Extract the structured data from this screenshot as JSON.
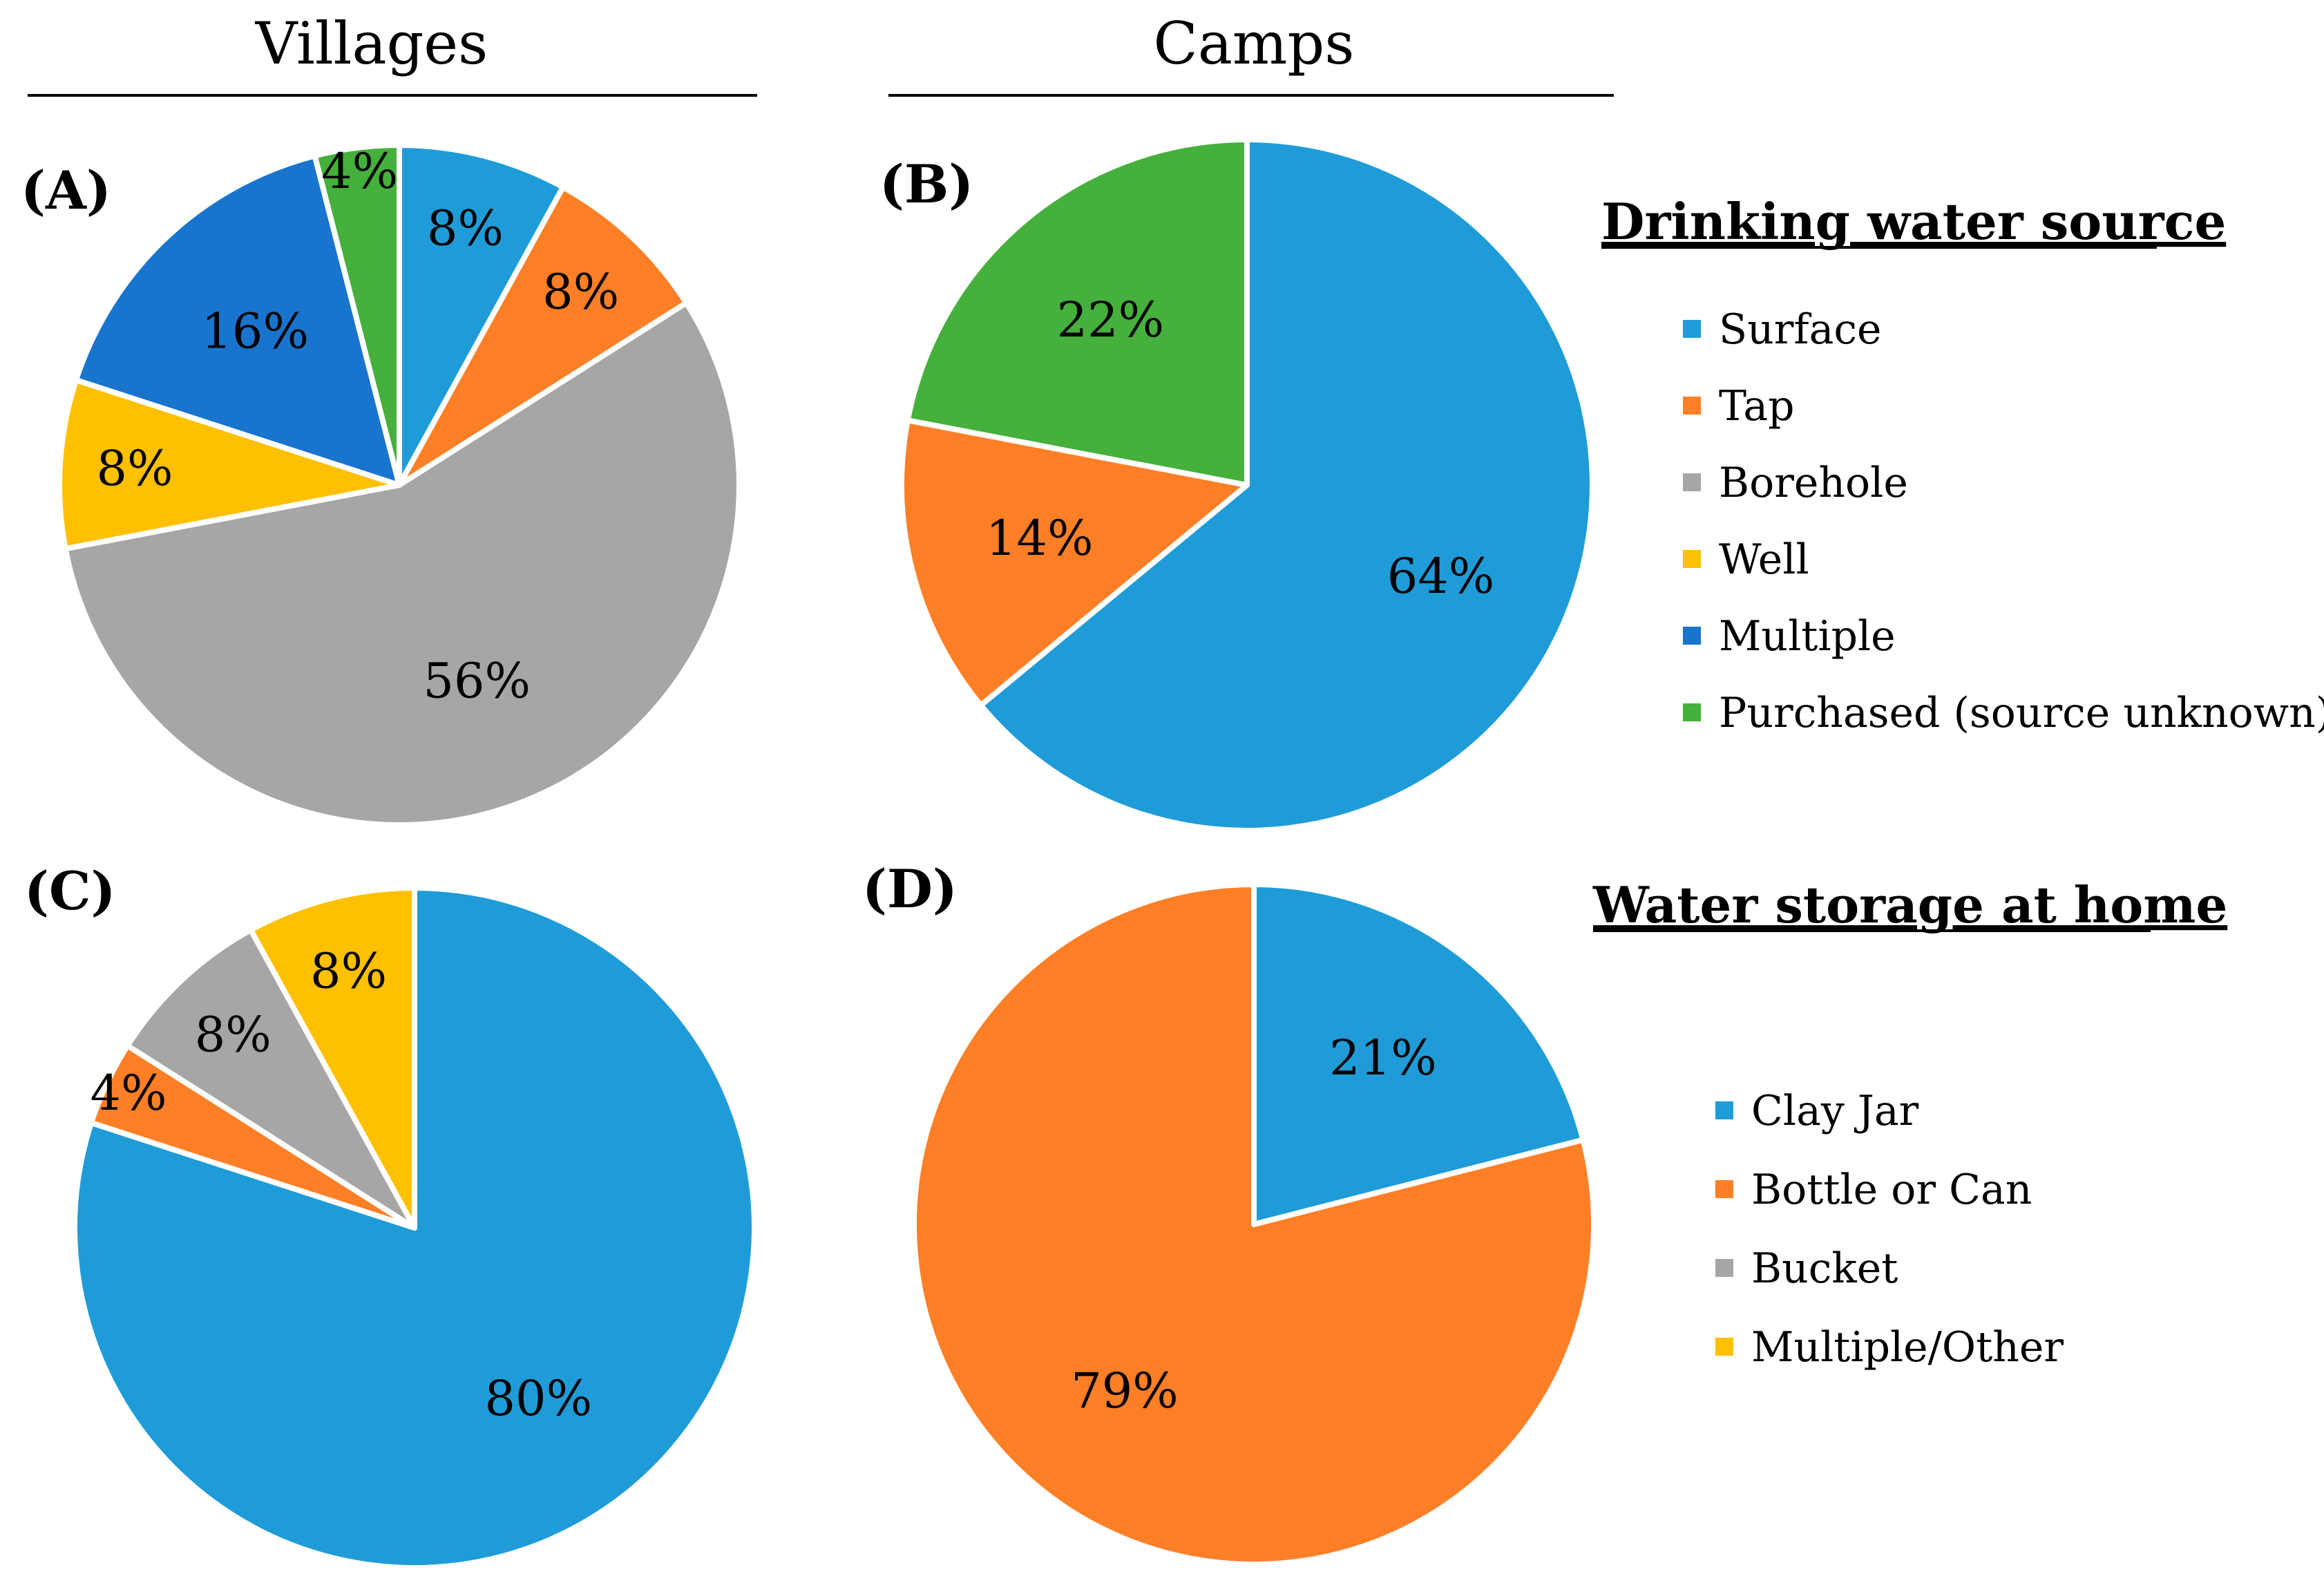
{
  "columns": {
    "left": "Villages",
    "right": "Camps"
  },
  "legends": {
    "source": {
      "title": "Drinking water source",
      "items": [
        {
          "label": "Surface",
          "color": "#1F9CD8"
        },
        {
          "label": "Tap",
          "color": "#FF7F27"
        },
        {
          "label": "Borehole",
          "color": "#A6A6A6"
        },
        {
          "label": "Well",
          "color": "#FFC000"
        },
        {
          "label": "Multiple",
          "color": "#1874CD"
        },
        {
          "label": "Purchased (source unknown)",
          "color": "#45B03C"
        }
      ]
    },
    "storage": {
      "title": "Water storage at home",
      "items": [
        {
          "label": "Clay Jar",
          "color": "#1F9CD8"
        },
        {
          "label": "Bottle or Can",
          "color": "#FF7F27"
        },
        {
          "label": "Bucket",
          "color": "#A6A6A6"
        },
        {
          "label": "Multiple/Other",
          "color": "#FFC000"
        }
      ]
    }
  },
  "chart_data": [
    {
      "type": "pie",
      "panel": "(A)",
      "column": "Villages",
      "legend": "source",
      "categories": [
        "Surface",
        "Tap",
        "Borehole",
        "Well",
        "Multiple",
        "Purchased (source unknown)"
      ],
      "values": [
        8,
        8,
        56,
        8,
        16,
        4
      ],
      "labels": [
        "8%",
        "8%",
        "56%",
        "8%",
        "16%",
        "4%"
      ],
      "colors": [
        "#1F9CD8",
        "#FF7F27",
        "#A6A6A6",
        "#FFC000",
        "#1874CD",
        "#45B03C"
      ]
    },
    {
      "type": "pie",
      "panel": "(B)",
      "column": "Camps",
      "legend": "source",
      "categories": [
        "Surface",
        "Tap",
        "Purchased (source unknown)"
      ],
      "values": [
        64,
        14,
        22
      ],
      "labels": [
        "64%",
        "14%",
        "22%"
      ],
      "colors": [
        "#1F9CD8",
        "#FF7F27",
        "#45B03C"
      ]
    },
    {
      "type": "pie",
      "panel": "(C)",
      "column": "Villages",
      "legend": "storage",
      "categories": [
        "Clay Jar",
        "Bottle or Can",
        "Bucket",
        "Multiple/Other"
      ],
      "values": [
        80,
        4,
        8,
        8
      ],
      "labels": [
        "80%",
        "4%",
        "8%",
        "8%"
      ],
      "colors": [
        "#1F9CD8",
        "#FF7F27",
        "#A6A6A6",
        "#FFC000"
      ]
    },
    {
      "type": "pie",
      "panel": "(D)",
      "column": "Camps",
      "legend": "storage",
      "categories": [
        "Clay Jar",
        "Bottle or Can"
      ],
      "values": [
        21,
        79
      ],
      "labels": [
        "21%",
        "79%"
      ],
      "colors": [
        "#1F9CD8",
        "#FF7F27"
      ]
    }
  ]
}
